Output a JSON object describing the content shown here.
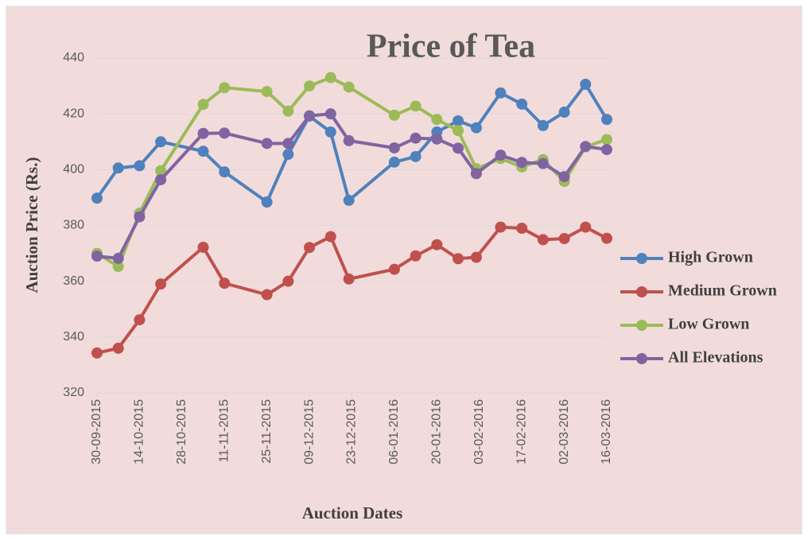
{
  "chart_data": {
    "type": "line",
    "title": "Price of Tea",
    "xlabel": "Auction Dates",
    "ylabel": "Auction Price (Rs.)",
    "x": [
      "2015-09-30",
      "2015-10-07",
      "2015-10-14",
      "2015-10-21",
      "2015-11-04",
      "2015-11-11",
      "2015-11-25",
      "2015-12-02",
      "2015-12-09",
      "2015-12-16",
      "2015-12-22",
      "2016-01-06",
      "2016-01-13",
      "2016-01-20",
      "2016-01-27",
      "2016-02-02",
      "2016-02-10",
      "2016-02-17",
      "2016-02-24",
      "2016-03-02",
      "2016-03-09",
      "2016-03-16"
    ],
    "series": [
      {
        "name": "High Grown",
        "color": "#4f81bd",
        "values": [
          389.8,
          400.6,
          401.4,
          410,
          406.6,
          399.2,
          388.4,
          405.5,
          419.2,
          413.5,
          389,
          402.7,
          404.7,
          413.5,
          417.5,
          415,
          427.5,
          423.5,
          415.8,
          420.6,
          430.6,
          418
        ]
      },
      {
        "name": "Medium Grown",
        "color": "#c0504d",
        "values": [
          334.3,
          336,
          346.2,
          359,
          372.2,
          359.3,
          355.2,
          360,
          372.1,
          376,
          360.8,
          364.3,
          369.1,
          373.1,
          368.1,
          368.6,
          379.4,
          379,
          374.9,
          375.3,
          379.4,
          375.4
        ]
      },
      {
        "name": "Low Grown",
        "color": "#9bbb59",
        "values": [
          370,
          365.3,
          384.4,
          399.6,
          423.4,
          429.4,
          428,
          421,
          430,
          433,
          429.6,
          419.5,
          422.8,
          418,
          414,
          400.3,
          404,
          401,
          403.6,
          395.8,
          408.2,
          410.8
        ]
      },
      {
        "name": "All Elevations",
        "color": "#8064a2",
        "values": [
          369,
          368.2,
          383.1,
          396.4,
          413,
          413.1,
          409.4,
          409.4,
          419.3,
          420,
          410.4,
          407.8,
          411.3,
          411,
          407.7,
          398.6,
          405.2,
          402.6,
          402.2,
          397.5,
          408.3,
          407.2
        ]
      }
    ],
    "xlim": [
      "2015-09-30",
      "2016-03-16"
    ],
    "xticks": [
      {
        "value": "2015-09-30",
        "label": "30-09-2015"
      },
      {
        "value": "2015-10-14",
        "label": "14-10-2015"
      },
      {
        "value": "2015-10-28",
        "label": "28-10-2015"
      },
      {
        "value": "2015-11-11",
        "label": "11-11-2015"
      },
      {
        "value": "2015-11-25",
        "label": "25-11-2015"
      },
      {
        "value": "2015-12-09",
        "label": "09-12-2015"
      },
      {
        "value": "2015-12-23",
        "label": "23-12-2015"
      },
      {
        "value": "2016-01-06",
        "label": "06-01-2016"
      },
      {
        "value": "2016-01-20",
        "label": "20-01-2016"
      },
      {
        "value": "2016-02-03",
        "label": "03-02-2016"
      },
      {
        "value": "2016-02-17",
        "label": "17-02-2016"
      },
      {
        "value": "2016-03-02",
        "label": "02-03-2016"
      },
      {
        "value": "2016-03-16",
        "label": "16-03-2016"
      }
    ],
    "ylim": [
      320,
      440
    ],
    "yticks": [
      320,
      340,
      360,
      380,
      400,
      420,
      440
    ],
    "grid": true,
    "legend": "right"
  }
}
